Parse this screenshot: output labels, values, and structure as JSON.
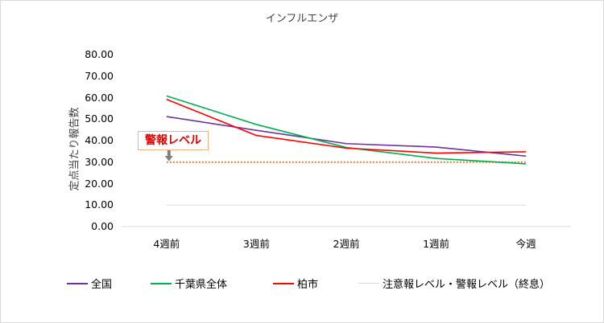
{
  "chart_data": {
    "type": "line",
    "title": "インフルエンザ",
    "ylabel": "定点当たり報告数",
    "xlabel": "",
    "ylim": [
      0,
      80
    ],
    "yticks": [
      "0.00",
      "10.00",
      "20.00",
      "30.00",
      "40.00",
      "50.00",
      "60.00",
      "70.00",
      "80.00"
    ],
    "categories": [
      "4週前",
      "3週前",
      "2週前",
      "1週前",
      "今週"
    ],
    "series": [
      {
        "name": "全国",
        "color": "#7030a0",
        "values": [
          51.2,
          44.8,
          38.6,
          37.0,
          32.8
        ]
      },
      {
        "name": "千葉県全体",
        "color": "#00b050",
        "values": [
          60.8,
          47.5,
          36.8,
          31.7,
          29.2
        ]
      },
      {
        "name": "柏市",
        "color": "#ff0000",
        "values": [
          59.2,
          42.4,
          36.5,
          34.2,
          34.8
        ]
      },
      {
        "name": "注意報レベル・警報レベル（終息）",
        "color": "#d9d9d9",
        "values": [
          10,
          10,
          10,
          10,
          10
        ]
      }
    ],
    "threshold": {
      "label": "警報レベル",
      "value": 30,
      "color": "#ed7d31"
    },
    "legend": "bottom"
  }
}
